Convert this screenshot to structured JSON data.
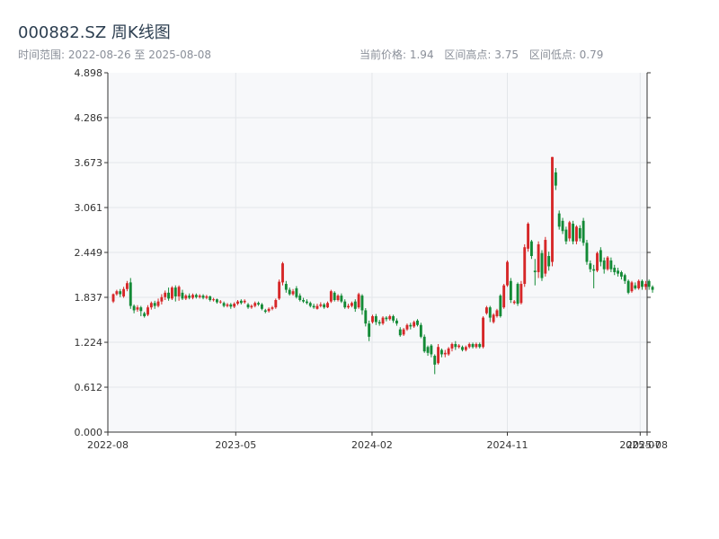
{
  "header": {
    "title": "000882.SZ 周K线图",
    "range_label": "时间范围: 2022-08-26 至 2025-08-08",
    "current_price": "当前价格: 1.94",
    "range_high": "区间高点: 3.75",
    "range_low": "区间低点: 0.79"
  },
  "colors": {
    "up": "#d62728",
    "down": "#138a36",
    "plot_bg": "#f7f8fa",
    "grid": "#e3e6ea",
    "axis": "#333333"
  },
  "chart_data": {
    "type": "candlestick",
    "title": "000882.SZ 周K线图",
    "ylim": [
      0.0,
      4.898
    ],
    "y_ticks": [
      "0.000",
      "0.612",
      "1.224",
      "1.837",
      "2.449",
      "3.061",
      "3.673",
      "4.286",
      "4.898"
    ],
    "x_range": [
      "2022-08-15",
      "2025-08-11"
    ],
    "x_ticks": [
      {
        "date": "2022-08-15",
        "label": "2022-08"
      },
      {
        "date": "2023-05-01",
        "label": "2023-05"
      },
      {
        "date": "2024-02-01",
        "label": "2024-02"
      },
      {
        "date": "2024-11-01",
        "label": "2024-11"
      },
      {
        "date": "2025-07-28",
        "label": "2025-07"
      },
      {
        "date": "2025-08-11",
        "label": "2025-08"
      }
    ],
    "grid": true,
    "fields": [
      "open",
      "close",
      "high",
      "low"
    ],
    "start_date": "2022-08-26",
    "interval": "weekly",
    "candles": [
      [
        1.78,
        1.88,
        1.89,
        1.76
      ],
      [
        1.88,
        1.92,
        1.94,
        1.86
      ],
      [
        1.92,
        1.88,
        1.95,
        1.84
      ],
      [
        1.85,
        1.95,
        1.98,
        1.83
      ],
      [
        1.95,
        2.03,
        2.06,
        1.92
      ],
      [
        2.04,
        1.72,
        2.1,
        1.68
      ],
      [
        1.72,
        1.66,
        1.74,
        1.62
      ],
      [
        1.67,
        1.7,
        1.73,
        1.64
      ],
      [
        1.7,
        1.65,
        1.72,
        1.58
      ],
      [
        1.62,
        1.58,
        1.64,
        1.56
      ],
      [
        1.6,
        1.7,
        1.73,
        1.58
      ],
      [
        1.7,
        1.76,
        1.78,
        1.67
      ],
      [
        1.76,
        1.72,
        1.79,
        1.68
      ],
      [
        1.72,
        1.78,
        1.82,
        1.7
      ],
      [
        1.78,
        1.84,
        1.88,
        1.74
      ],
      [
        1.84,
        1.9,
        1.93,
        1.8
      ],
      [
        1.9,
        1.82,
        1.97,
        1.79
      ],
      [
        1.82,
        1.97,
        1.99,
        1.8
      ],
      [
        1.97,
        1.85,
        2.0,
        1.78
      ],
      [
        1.85,
        1.98,
        2.0,
        1.79
      ],
      [
        1.9,
        1.82,
        1.94,
        1.8
      ],
      [
        1.82,
        1.86,
        1.88,
        1.8
      ],
      [
        1.86,
        1.83,
        1.89,
        1.81
      ],
      [
        1.83,
        1.87,
        1.89,
        1.81
      ],
      [
        1.87,
        1.84,
        1.89,
        1.82
      ],
      [
        1.84,
        1.86,
        1.88,
        1.82
      ],
      [
        1.86,
        1.83,
        1.88,
        1.81
      ],
      [
        1.83,
        1.85,
        1.87,
        1.81
      ],
      [
        1.85,
        1.8,
        1.86,
        1.78
      ],
      [
        1.8,
        1.81,
        1.83,
        1.78
      ],
      [
        1.81,
        1.77,
        1.82,
        1.75
      ],
      [
        1.77,
        1.78,
        1.8,
        1.75
      ],
      [
        1.76,
        1.72,
        1.78,
        1.7
      ],
      [
        1.72,
        1.74,
        1.76,
        1.7
      ],
      [
        1.74,
        1.71,
        1.76,
        1.68
      ],
      [
        1.71,
        1.75,
        1.77,
        1.69
      ],
      [
        1.75,
        1.78,
        1.8,
        1.73
      ],
      [
        1.79,
        1.76,
        1.81,
        1.74
      ],
      [
        1.77,
        1.79,
        1.81,
        1.75
      ],
      [
        1.74,
        1.7,
        1.76,
        1.68
      ],
      [
        1.7,
        1.72,
        1.74,
        1.68
      ],
      [
        1.72,
        1.76,
        1.78,
        1.7
      ],
      [
        1.76,
        1.74,
        1.78,
        1.72
      ],
      [
        1.74,
        1.68,
        1.76,
        1.66
      ],
      [
        1.66,
        1.64,
        1.68,
        1.62
      ],
      [
        1.65,
        1.68,
        1.7,
        1.63
      ],
      [
        1.68,
        1.7,
        1.72,
        1.66
      ],
      [
        1.7,
        1.8,
        1.82,
        1.68
      ],
      [
        1.82,
        2.05,
        2.08,
        1.8
      ],
      [
        2.04,
        2.3,
        2.32,
        2.0
      ],
      [
        2.02,
        1.94,
        2.06,
        1.9
      ],
      [
        1.94,
        1.88,
        1.97,
        1.86
      ],
      [
        1.88,
        1.92,
        1.95,
        1.86
      ],
      [
        1.96,
        1.84,
        1.99,
        1.82
      ],
      [
        1.86,
        1.8,
        1.89,
        1.78
      ],
      [
        1.8,
        1.78,
        1.83,
        1.76
      ],
      [
        1.78,
        1.76,
        1.81,
        1.74
      ],
      [
        1.76,
        1.72,
        1.78,
        1.7
      ],
      [
        1.72,
        1.7,
        1.75,
        1.68
      ],
      [
        1.68,
        1.72,
        1.75,
        1.67
      ],
      [
        1.72,
        1.74,
        1.77,
        1.7
      ],
      [
        1.74,
        1.7,
        1.76,
        1.68
      ],
      [
        1.7,
        1.76,
        1.78,
        1.69
      ],
      [
        1.78,
        1.92,
        1.94,
        1.76
      ],
      [
        1.9,
        1.8,
        1.92,
        1.78
      ],
      [
        1.8,
        1.86,
        1.88,
        1.78
      ],
      [
        1.86,
        1.78,
        1.89,
        1.76
      ],
      [
        1.78,
        1.7,
        1.81,
        1.68
      ],
      [
        1.7,
        1.72,
        1.75,
        1.68
      ],
      [
        1.72,
        1.76,
        1.78,
        1.7
      ],
      [
        1.78,
        1.68,
        1.81,
        1.64
      ],
      [
        1.7,
        1.88,
        1.9,
        1.68
      ],
      [
        1.86,
        1.66,
        1.88,
        1.6
      ],
      [
        1.66,
        1.48,
        1.69,
        1.44
      ],
      [
        1.48,
        1.3,
        1.52,
        1.24
      ],
      [
        1.5,
        1.58,
        1.6,
        1.48
      ],
      [
        1.58,
        1.5,
        1.61,
        1.46
      ],
      [
        1.5,
        1.48,
        1.53,
        1.45
      ],
      [
        1.48,
        1.56,
        1.58,
        1.46
      ],
      [
        1.56,
        1.54,
        1.58,
        1.51
      ],
      [
        1.54,
        1.58,
        1.6,
        1.52
      ],
      [
        1.58,
        1.52,
        1.6,
        1.49
      ],
      [
        1.52,
        1.48,
        1.55,
        1.45
      ],
      [
        1.4,
        1.32,
        1.43,
        1.3
      ],
      [
        1.33,
        1.4,
        1.42,
        1.31
      ],
      [
        1.4,
        1.46,
        1.48,
        1.38
      ],
      [
        1.46,
        1.44,
        1.49,
        1.4
      ],
      [
        1.44,
        1.5,
        1.52,
        1.42
      ],
      [
        1.52,
        1.46,
        1.54,
        1.44
      ],
      [
        1.46,
        1.3,
        1.49,
        1.28
      ],
      [
        1.3,
        1.1,
        1.33,
        1.08
      ],
      [
        1.16,
        1.08,
        1.18,
        1.04
      ],
      [
        1.18,
        1.06,
        1.2,
        1.02
      ],
      [
        1.04,
        0.92,
        1.06,
        0.79
      ],
      [
        0.94,
        1.16,
        1.2,
        0.92
      ],
      [
        1.12,
        1.06,
        1.14,
        1.02
      ],
      [
        1.06,
        1.08,
        1.12,
        1.02
      ],
      [
        1.06,
        1.14,
        1.16,
        1.04
      ],
      [
        1.14,
        1.2,
        1.22,
        1.1
      ],
      [
        1.2,
        1.16,
        1.24,
        1.12
      ],
      [
        1.16,
        1.18,
        1.2,
        1.14
      ],
      [
        1.16,
        1.12,
        1.18,
        1.1
      ],
      [
        1.12,
        1.16,
        1.18,
        1.1
      ],
      [
        1.16,
        1.2,
        1.22,
        1.14
      ],
      [
        1.2,
        1.16,
        1.22,
        1.14
      ],
      [
        1.16,
        1.2,
        1.22,
        1.14
      ],
      [
        1.2,
        1.16,
        1.22,
        1.14
      ],
      [
        1.16,
        1.56,
        1.58,
        1.14
      ],
      [
        1.62,
        1.7,
        1.72,
        1.6
      ],
      [
        1.7,
        1.56,
        1.72,
        1.5
      ],
      [
        1.5,
        1.6,
        1.62,
        1.48
      ],
      [
        1.58,
        1.66,
        1.68,
        1.56
      ],
      [
        1.86,
        1.58,
        1.88,
        1.56
      ],
      [
        1.7,
        2.0,
        2.02,
        1.68
      ],
      [
        2.0,
        2.32,
        2.34,
        1.98
      ],
      [
        2.06,
        1.8,
        2.1,
        1.76
      ],
      [
        1.76,
        1.78,
        1.8,
        1.74
      ],
      [
        2.02,
        1.75,
        2.04,
        1.72
      ],
      [
        1.76,
        2.02,
        2.06,
        1.74
      ],
      [
        2.02,
        2.52,
        2.56,
        1.98
      ],
      [
        2.5,
        2.84,
        2.86,
        2.46
      ],
      [
        2.6,
        2.4,
        2.62,
        2.36
      ],
      [
        2.2,
        2.18,
        2.36,
        2.0
      ],
      [
        2.18,
        2.56,
        2.6,
        2.1
      ],
      [
        2.44,
        2.1,
        2.48,
        2.06
      ],
      [
        2.16,
        2.62,
        2.66,
        2.12
      ],
      [
        2.4,
        2.26,
        2.46,
        2.2
      ],
      [
        2.32,
        3.75,
        3.75,
        2.26
      ],
      [
        3.54,
        3.36,
        3.6,
        3.3
      ],
      [
        2.98,
        2.8,
        3.02,
        2.76
      ],
      [
        2.88,
        2.74,
        2.92,
        2.7
      ],
      [
        2.76,
        2.6,
        2.8,
        2.56
      ],
      [
        2.64,
        2.86,
        2.88,
        2.6
      ],
      [
        2.84,
        2.6,
        2.88,
        2.56
      ],
      [
        2.6,
        2.8,
        2.82,
        2.56
      ],
      [
        2.78,
        2.64,
        2.82,
        2.6
      ],
      [
        2.88,
        2.58,
        2.92,
        2.54
      ],
      [
        2.58,
        2.32,
        2.62,
        2.28
      ],
      [
        2.3,
        2.22,
        2.34,
        2.18
      ],
      [
        2.22,
        2.2,
        2.28,
        1.96
      ],
      [
        2.2,
        2.44,
        2.46,
        2.18
      ],
      [
        2.48,
        2.32,
        2.52,
        2.26
      ],
      [
        2.34,
        2.22,
        2.38,
        2.16
      ],
      [
        2.22,
        2.38,
        2.4,
        2.2
      ],
      [
        2.34,
        2.22,
        2.38,
        2.18
      ],
      [
        2.24,
        2.18,
        2.28,
        2.14
      ],
      [
        2.2,
        2.16,
        2.24,
        2.12
      ],
      [
        2.18,
        2.12,
        2.2,
        2.08
      ],
      [
        2.14,
        2.06,
        2.16,
        2.02
      ],
      [
        2.06,
        1.9,
        2.08,
        1.88
      ],
      [
        1.92,
        2.04,
        2.06,
        1.9
      ],
      [
        2.0,
        1.96,
        2.04,
        1.94
      ],
      [
        1.96,
        2.06,
        2.08,
        1.94
      ],
      [
        2.06,
        1.98,
        2.08,
        1.94
      ],
      [
        1.98,
        2.02,
        2.06,
        1.94
      ],
      [
        2.06,
        1.98,
        2.08,
        1.94
      ],
      [
        1.98,
        1.94,
        2.0,
        1.9
      ]
    ]
  }
}
